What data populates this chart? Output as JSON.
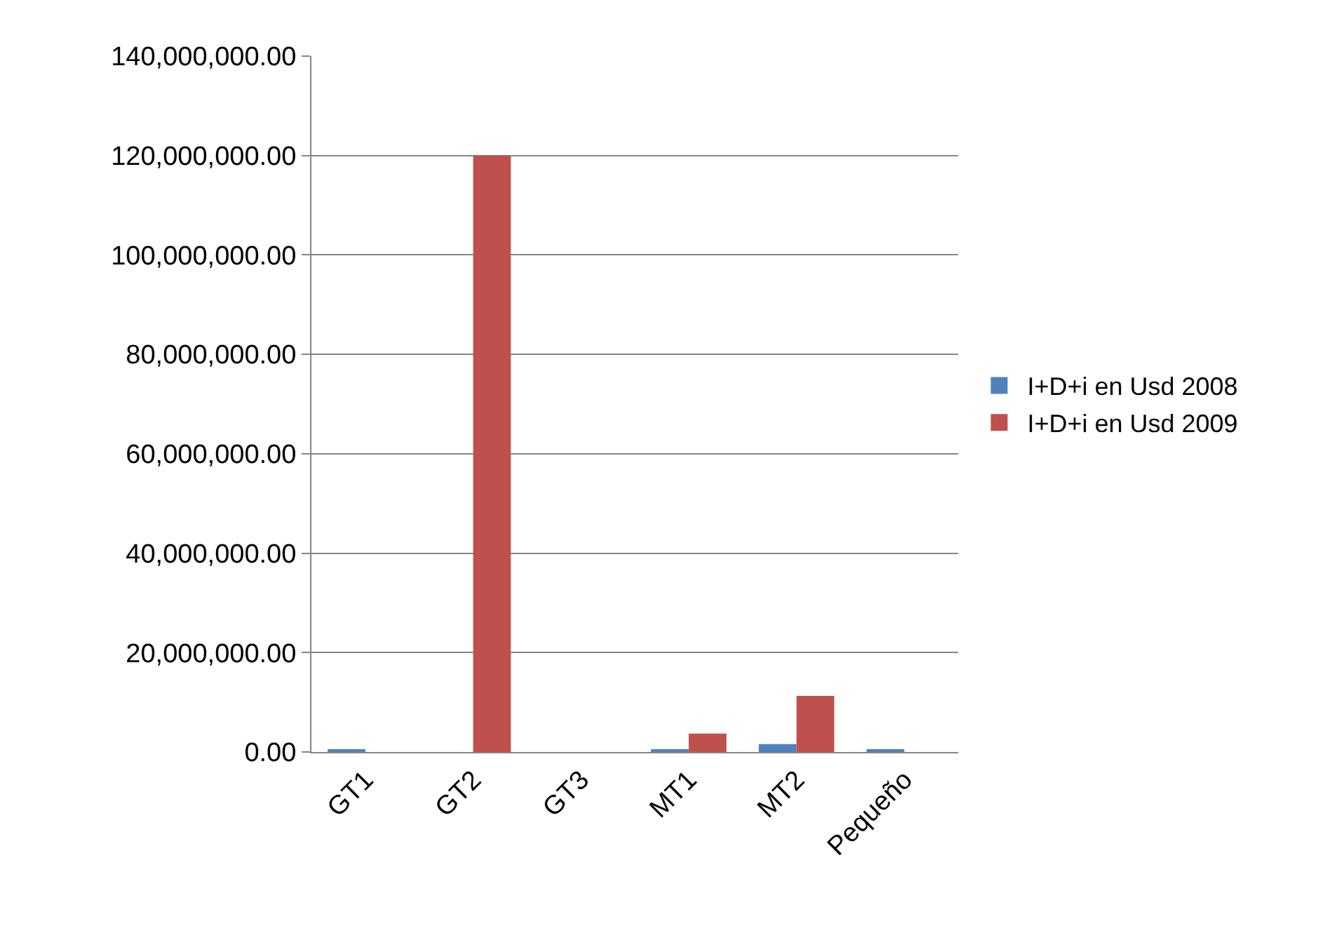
{
  "chart_data": {
    "type": "bar",
    "categories": [
      "GT1",
      "GT2",
      "GT3",
      "MT1",
      "MT2",
      "Pequeño"
    ],
    "series": [
      {
        "name": "I+D+i en Usd 2008",
        "color": "#4f81bd",
        "values": [
          500000,
          0,
          0,
          500000,
          1600000,
          500000
        ]
      },
      {
        "name": "I+D+i en Usd 2009",
        "color": "#c0504d",
        "values": [
          0,
          120000000,
          0,
          3700000,
          11300000,
          0
        ]
      }
    ],
    "ylim": [
      0,
      140000000
    ],
    "yticks": [
      {
        "value": 0,
        "label": "0.00"
      },
      {
        "value": 20000000,
        "label": "20,000,000.00"
      },
      {
        "value": 40000000,
        "label": "40,000,000.00"
      },
      {
        "value": 60000000,
        "label": "60,000,000.00"
      },
      {
        "value": 80000000,
        "label": "80,000,000.00"
      },
      {
        "value": 100000000,
        "label": "100,000,000.00"
      },
      {
        "value": 120000000,
        "label": "120,000,000.00"
      },
      {
        "value": 140000000,
        "label": "140,000,000.00"
      }
    ],
    "grid": "y",
    "legend": "right"
  }
}
